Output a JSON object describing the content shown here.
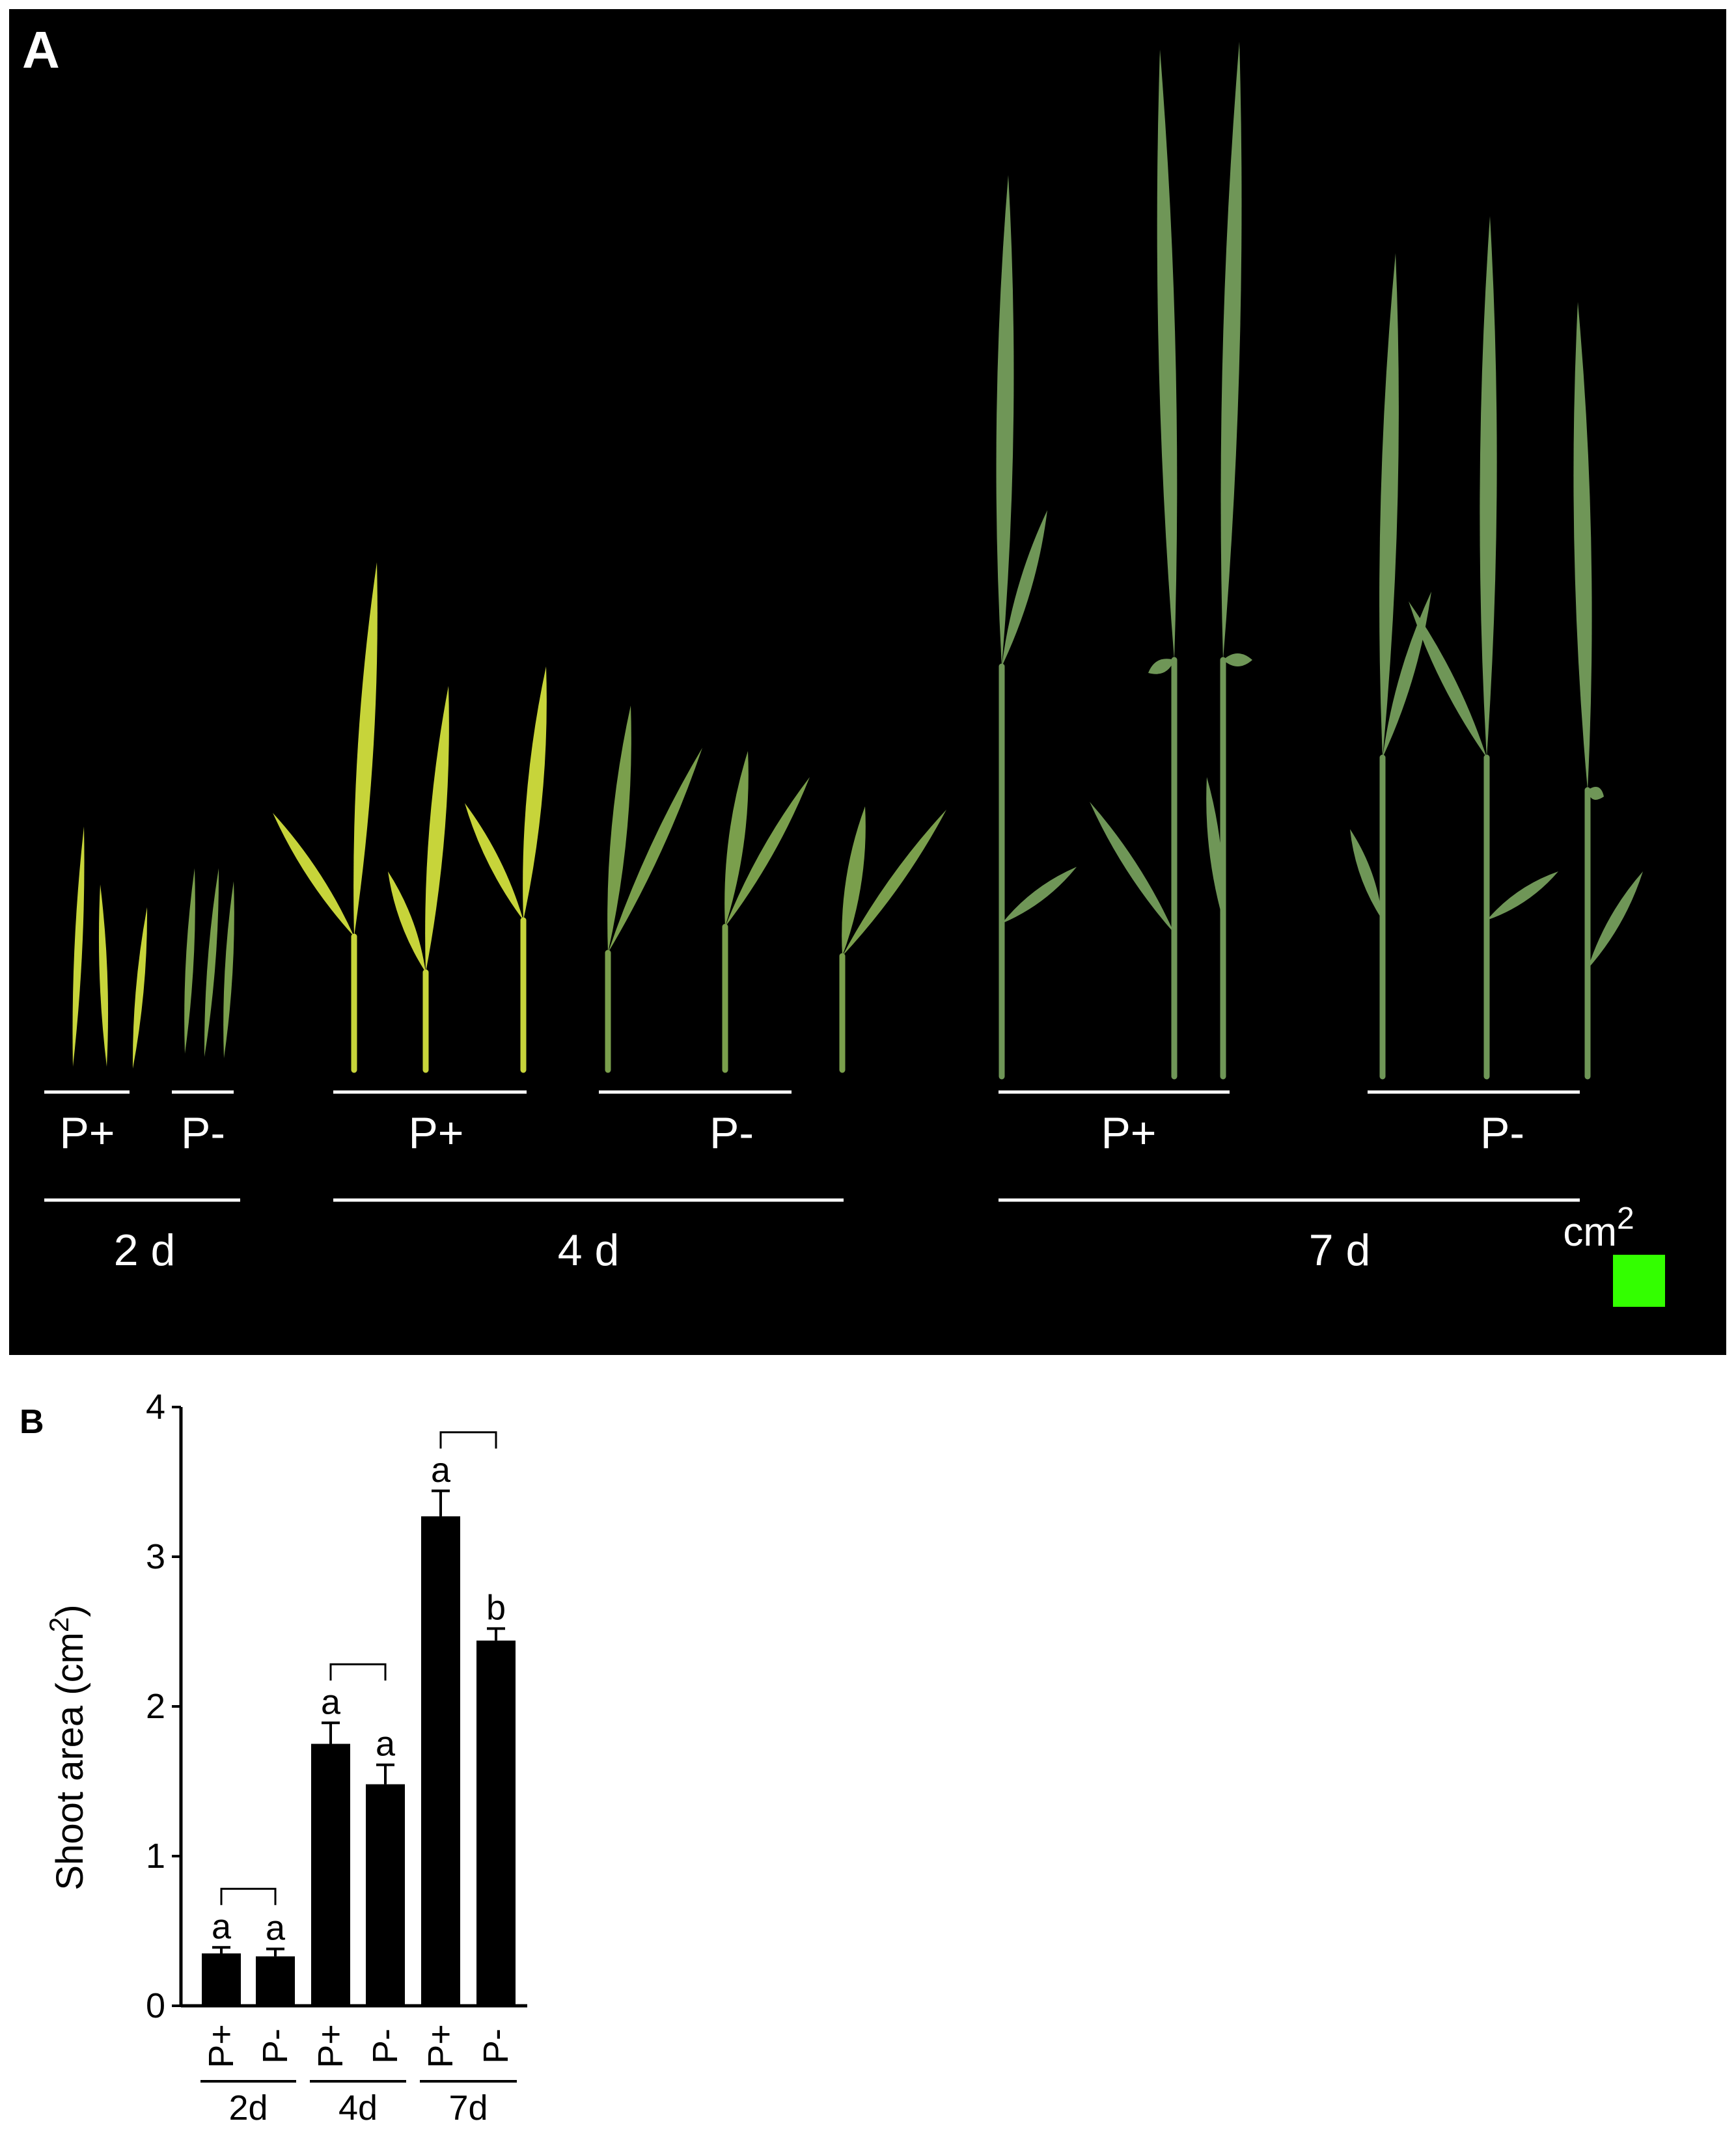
{
  "panel_a": {
    "label": "A",
    "groups": [
      {
        "day": "2 d",
        "treatments": [
          "P+",
          "P-"
        ]
      },
      {
        "day": "4 d",
        "treatments": [
          "P+",
          "P-"
        ]
      },
      {
        "day": "7 d",
        "treatments": [
          "P+",
          "P-"
        ]
      }
    ],
    "scale_label_base": "cm",
    "scale_label_exp": "2",
    "scale_color": "#33ff00",
    "leaf_colors": {
      "young": "#c7d43a",
      "green": "#7a9f4c",
      "mature": "#6f9657"
    }
  },
  "chart_data": {
    "type": "bar",
    "panel_label": "B",
    "ylabel_base": "Shoot area (cm",
    "ylabel_exp": "2",
    "ylabel_close": ")",
    "ylim": [
      0,
      4
    ],
    "yticks": [
      "0",
      "1",
      "2",
      "3",
      "4"
    ],
    "grid": false,
    "bar_color": "#000000",
    "groups": [
      "2d",
      "4d",
      "7d"
    ],
    "categories": [
      "P+",
      "P-",
      "P+",
      "P-",
      "P+",
      "P-"
    ],
    "values": [
      0.35,
      0.33,
      1.75,
      1.48,
      3.27,
      2.44
    ],
    "errors": [
      0.04,
      0.05,
      0.14,
      0.13,
      0.17,
      0.08
    ],
    "letters": [
      "a",
      "a",
      "a",
      "a",
      "a",
      "b"
    ]
  }
}
